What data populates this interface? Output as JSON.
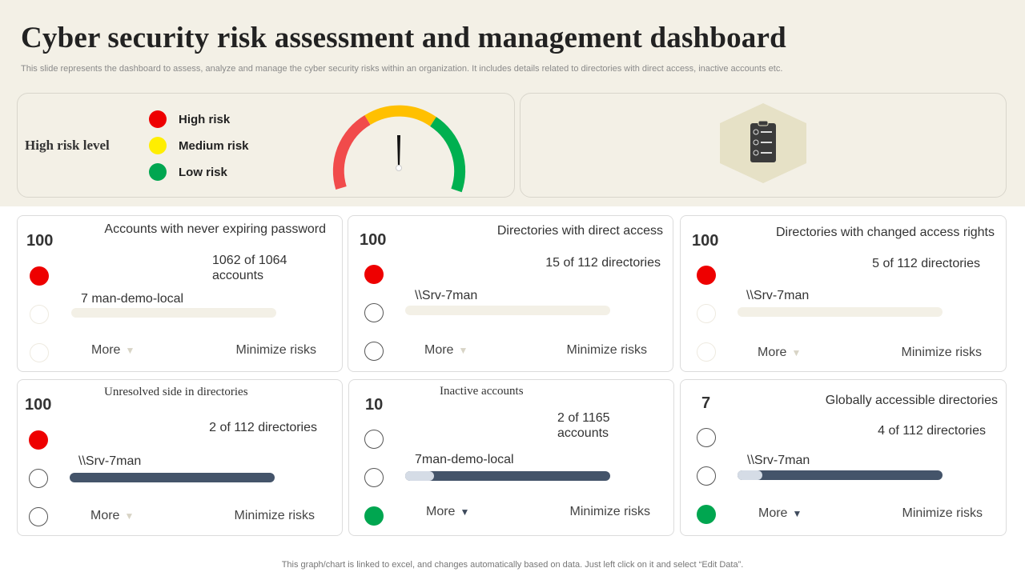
{
  "page": {
    "title": "Cyber security risk assessment and management dashboard",
    "subtitle": "This slide represents the dashboard to assess, analyze and manage the cyber security risks within an organization. It includes details related to directories with direct access, inactive accounts etc.",
    "footer": "This graph/chart is linked to excel,  and changes automatically based on data. Just left click on it and select “Edit Data”."
  },
  "risk_panel": {
    "label": "High risk level",
    "legend": [
      {
        "label": "High risk",
        "color": "#ee0000"
      },
      {
        "label": "Medium risk",
        "color": "#ffee00"
      },
      {
        "label": "Low risk",
        "color": "#00a650"
      }
    ],
    "gauge_colors": {
      "low": "#f14b4b",
      "mid": "#ffc000",
      "high": "#00b050",
      "needle": "#111111"
    },
    "gauge_needle_fraction": 0.5
  },
  "clipboard_panel": {
    "icon": "clipboard-checklist-icon",
    "hex_color": "#e6e1c6"
  },
  "colors": {
    "bar_dark": "#44546a",
    "bar_light": "#f3f0e6",
    "bar_fill_light": "#d5dce6"
  },
  "cards": [
    {
      "score": "100",
      "title": "Accounts with never expiring password",
      "stat": "1062 of 1064 accounts",
      "host": "7 man-demo-local",
      "more": "More",
      "action": "Minimize risks",
      "status": "high"
    },
    {
      "score": "100",
      "title": "Directories with direct access",
      "stat": "15 of 112 directories",
      "host": "\\\\Srv-7man",
      "more": "More",
      "action": "Minimize risks",
      "status": "high"
    },
    {
      "score": "100",
      "title": "Directories with changed access rights",
      "stat": "5 of 112 directories",
      "host": "\\\\Srv-7man",
      "more": "More",
      "action": "Minimize risks",
      "status": "high"
    },
    {
      "score": "100",
      "title": "Unresolved  side  in  directories",
      "stat": "2 of 112 directories",
      "host": "\\\\Srv-7man",
      "more": "More",
      "action": "Minimize risks",
      "status": "high"
    },
    {
      "score": "10",
      "title": "Inactive   accounts",
      "stat": "2 of 1165 accounts",
      "host": "7man-demo-local",
      "more": "More",
      "action": "Minimize risks",
      "status": "low",
      "bar_fill_fraction": 0.14
    },
    {
      "score": "7",
      "title": "Globally accessible directories",
      "stat": "4 of 112 directories",
      "host": "\\\\Srv-7man",
      "more": "More",
      "action": "Minimize risks",
      "status": "low",
      "bar_fill_fraction": 0.12
    }
  ]
}
